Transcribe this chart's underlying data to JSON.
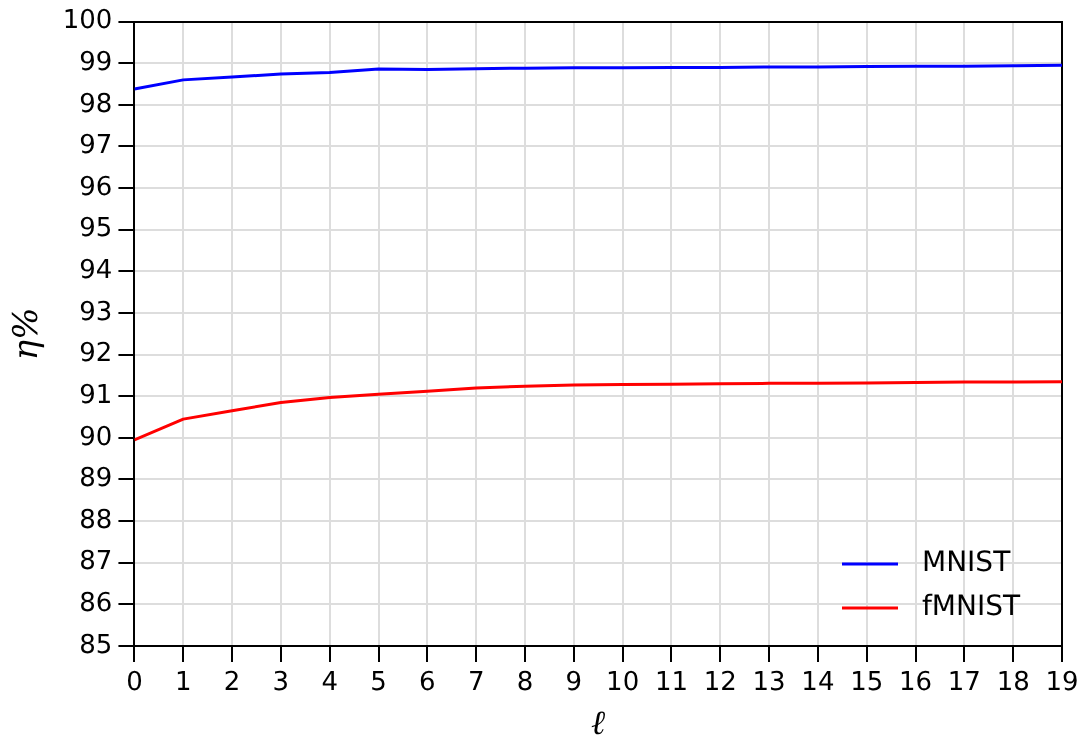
{
  "chart_data": {
    "type": "line",
    "xlabel": "ℓ",
    "ylabel": "η%",
    "x": [
      0,
      1,
      2,
      3,
      4,
      5,
      6,
      7,
      8,
      9,
      10,
      11,
      12,
      13,
      14,
      15,
      16,
      17,
      18,
      19
    ],
    "series": [
      {
        "name": "MNIST",
        "color": "#0000ff",
        "values": [
          98.38,
          98.6,
          98.67,
          98.74,
          98.78,
          98.86,
          98.85,
          98.87,
          98.88,
          98.89,
          98.89,
          98.9,
          98.9,
          98.91,
          98.91,
          98.92,
          98.93,
          98.93,
          98.94,
          98.95
        ]
      },
      {
        "name": "fMNIST",
        "color": "#ff0000",
        "values": [
          89.95,
          90.45,
          90.65,
          90.85,
          90.97,
          91.05,
          91.12,
          91.2,
          91.24,
          91.27,
          91.28,
          91.29,
          91.3,
          91.31,
          91.31,
          91.32,
          91.33,
          91.34,
          91.34,
          91.35
        ]
      }
    ],
    "xlim": [
      0,
      19
    ],
    "xticks": [
      0,
      1,
      2,
      3,
      4,
      5,
      6,
      7,
      8,
      9,
      10,
      11,
      12,
      13,
      14,
      15,
      16,
      17,
      18,
      19
    ],
    "ylim": [
      85,
      100
    ],
    "yticks": [
      85,
      86,
      87,
      88,
      89,
      90,
      91,
      92,
      93,
      94,
      95,
      96,
      97,
      98,
      99,
      100
    ],
    "grid": true,
    "legend": "bottom right",
    "marker": "none",
    "line_style": "solid"
  }
}
